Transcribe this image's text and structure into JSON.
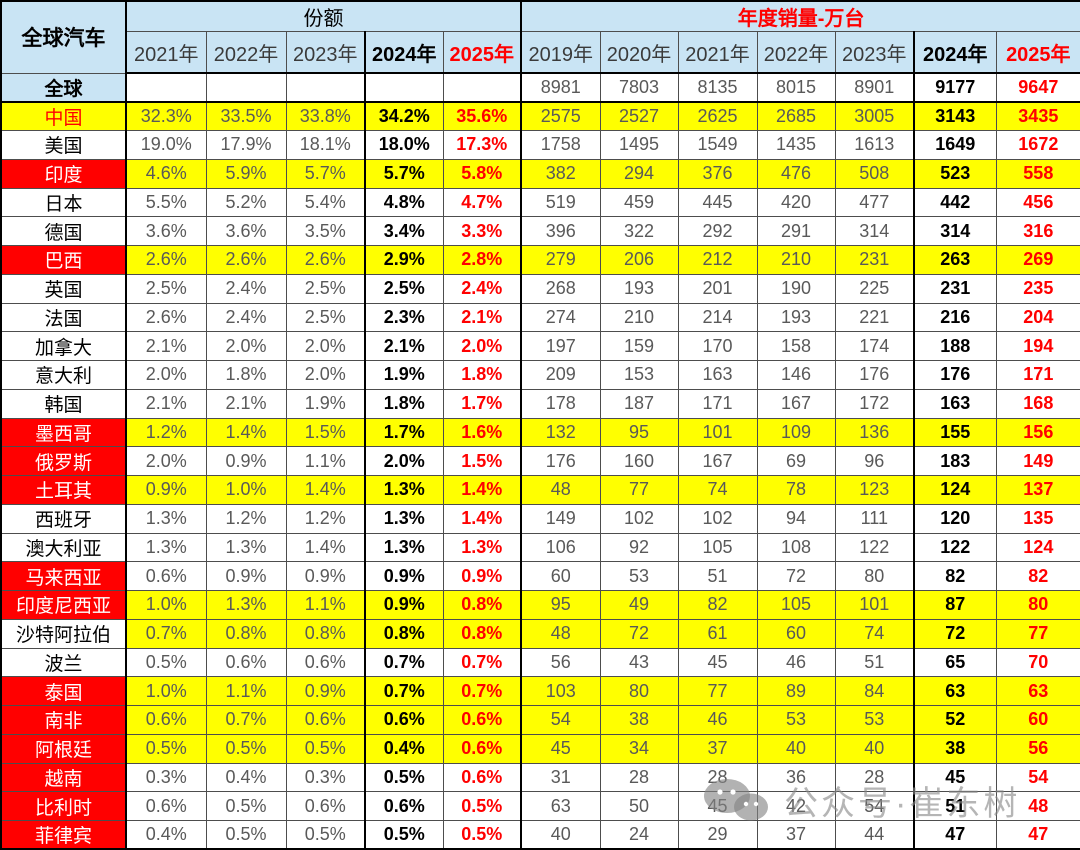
{
  "chart_data": {
    "type": "table",
    "corner_title": "全球汽车",
    "col_groups": [
      {
        "label": "份额"
      },
      {
        "label": "年度销量-万台"
      }
    ],
    "share_years": [
      "2021年",
      "2022年",
      "2023年",
      "2024年",
      "2025年"
    ],
    "sales_years": [
      "2019年",
      "2020年",
      "2021年",
      "2022年",
      "2023年",
      "2024年",
      "2025年"
    ],
    "rows": [
      {
        "label": "全球",
        "row_style": "global",
        "share": [
          "",
          "",
          "",
          "",
          ""
        ],
        "sales": [
          "8981",
          "7803",
          "8135",
          "8015",
          "8901",
          "9177",
          "9647"
        ]
      },
      {
        "label": "中国",
        "row_style": "china",
        "share": [
          "32.3%",
          "33.5%",
          "33.8%",
          "34.2%",
          "35.6%"
        ],
        "sales": [
          "2575",
          "2527",
          "2625",
          "2685",
          "3005",
          "3143",
          "3435"
        ]
      },
      {
        "label": "美国",
        "row_style": "plain",
        "share": [
          "19.0%",
          "17.9%",
          "18.1%",
          "18.0%",
          "17.3%"
        ],
        "sales": [
          "1758",
          "1495",
          "1549",
          "1435",
          "1613",
          "1649",
          "1672"
        ]
      },
      {
        "label": "印度",
        "row_style": "red_yellow",
        "share": [
          "4.6%",
          "5.9%",
          "5.7%",
          "5.7%",
          "5.8%"
        ],
        "sales": [
          "382",
          "294",
          "376",
          "476",
          "508",
          "523",
          "558"
        ]
      },
      {
        "label": "日本",
        "row_style": "plain",
        "share": [
          "5.5%",
          "5.2%",
          "5.4%",
          "4.8%",
          "4.7%"
        ],
        "sales": [
          "519",
          "459",
          "445",
          "420",
          "477",
          "442",
          "456"
        ]
      },
      {
        "label": "德国",
        "row_style": "plain",
        "share": [
          "3.6%",
          "3.6%",
          "3.5%",
          "3.4%",
          "3.3%"
        ],
        "sales": [
          "396",
          "322",
          "292",
          "291",
          "314",
          "314",
          "316"
        ]
      },
      {
        "label": "巴西",
        "row_style": "red_yellow",
        "share": [
          "2.6%",
          "2.6%",
          "2.6%",
          "2.9%",
          "2.8%"
        ],
        "sales": [
          "279",
          "206",
          "212",
          "210",
          "231",
          "263",
          "269"
        ]
      },
      {
        "label": "英国",
        "row_style": "plain",
        "share": [
          "2.5%",
          "2.4%",
          "2.5%",
          "2.5%",
          "2.4%"
        ],
        "sales": [
          "268",
          "193",
          "201",
          "190",
          "225",
          "231",
          "235"
        ]
      },
      {
        "label": "法国",
        "row_style": "plain",
        "share": [
          "2.6%",
          "2.4%",
          "2.5%",
          "2.3%",
          "2.1%"
        ],
        "sales": [
          "274",
          "210",
          "214",
          "193",
          "221",
          "216",
          "204"
        ]
      },
      {
        "label": "加拿大",
        "row_style": "plain",
        "share": [
          "2.1%",
          "2.0%",
          "2.0%",
          "2.1%",
          "2.0%"
        ],
        "sales": [
          "197",
          "159",
          "170",
          "158",
          "174",
          "188",
          "194"
        ]
      },
      {
        "label": "意大利",
        "row_style": "plain",
        "share": [
          "2.0%",
          "1.8%",
          "2.0%",
          "1.9%",
          "1.8%"
        ],
        "sales": [
          "209",
          "153",
          "163",
          "146",
          "176",
          "176",
          "171"
        ]
      },
      {
        "label": "韩国",
        "row_style": "plain",
        "share": [
          "2.1%",
          "2.1%",
          "1.9%",
          "1.8%",
          "1.7%"
        ],
        "sales": [
          "178",
          "187",
          "171",
          "167",
          "172",
          "163",
          "168"
        ]
      },
      {
        "label": "墨西哥",
        "row_style": "red_yellow",
        "share": [
          "1.2%",
          "1.4%",
          "1.5%",
          "1.7%",
          "1.6%"
        ],
        "sales": [
          "132",
          "95",
          "101",
          "109",
          "136",
          "155",
          "156"
        ]
      },
      {
        "label": "俄罗斯",
        "row_style": "red_white",
        "share": [
          "2.0%",
          "0.9%",
          "1.1%",
          "2.0%",
          "1.5%"
        ],
        "sales": [
          "176",
          "160",
          "167",
          "69",
          "96",
          "183",
          "149"
        ]
      },
      {
        "label": "土耳其",
        "row_style": "red_yellow",
        "share": [
          "0.9%",
          "1.0%",
          "1.4%",
          "1.3%",
          "1.4%"
        ],
        "sales": [
          "48",
          "77",
          "74",
          "78",
          "123",
          "124",
          "137"
        ]
      },
      {
        "label": "西班牙",
        "row_style": "plain",
        "share": [
          "1.3%",
          "1.2%",
          "1.2%",
          "1.3%",
          "1.4%"
        ],
        "sales": [
          "149",
          "102",
          "102",
          "94",
          "111",
          "120",
          "135"
        ]
      },
      {
        "label": "澳大利亚",
        "row_style": "plain",
        "share": [
          "1.3%",
          "1.3%",
          "1.4%",
          "1.3%",
          "1.3%"
        ],
        "sales": [
          "106",
          "92",
          "105",
          "108",
          "122",
          "122",
          "124"
        ]
      },
      {
        "label": "马来西亚",
        "row_style": "red_white",
        "share": [
          "0.6%",
          "0.9%",
          "0.9%",
          "0.9%",
          "0.9%"
        ],
        "sales": [
          "60",
          "53",
          "51",
          "72",
          "80",
          "82",
          "82"
        ]
      },
      {
        "label": "印度尼西亚",
        "row_style": "red_yellow",
        "share": [
          "1.0%",
          "1.3%",
          "1.1%",
          "0.9%",
          "0.8%"
        ],
        "sales": [
          "95",
          "49",
          "82",
          "105",
          "101",
          "87",
          "80"
        ]
      },
      {
        "label": "沙特阿拉伯",
        "row_style": "white_yellow",
        "share": [
          "0.7%",
          "0.8%",
          "0.8%",
          "0.8%",
          "0.8%"
        ],
        "sales": [
          "48",
          "72",
          "61",
          "60",
          "74",
          "72",
          "77"
        ]
      },
      {
        "label": "波兰",
        "row_style": "plain",
        "share": [
          "0.5%",
          "0.6%",
          "0.6%",
          "0.7%",
          "0.7%"
        ],
        "sales": [
          "56",
          "43",
          "45",
          "46",
          "51",
          "65",
          "70"
        ]
      },
      {
        "label": "泰国",
        "row_style": "red_yellow",
        "share": [
          "1.0%",
          "1.1%",
          "0.9%",
          "0.7%",
          "0.7%"
        ],
        "sales": [
          "103",
          "80",
          "77",
          "89",
          "84",
          "63",
          "63"
        ]
      },
      {
        "label": "南非",
        "row_style": "red_yellow",
        "share": [
          "0.6%",
          "0.7%",
          "0.6%",
          "0.6%",
          "0.6%"
        ],
        "sales": [
          "54",
          "38",
          "46",
          "53",
          "53",
          "52",
          "60"
        ]
      },
      {
        "label": "阿根廷",
        "row_style": "red_yellow",
        "share": [
          "0.5%",
          "0.5%",
          "0.5%",
          "0.4%",
          "0.6%"
        ],
        "sales": [
          "45",
          "34",
          "37",
          "40",
          "40",
          "38",
          "56"
        ]
      },
      {
        "label": "越南",
        "row_style": "red_white",
        "share": [
          "0.3%",
          "0.4%",
          "0.3%",
          "0.5%",
          "0.6%"
        ],
        "sales": [
          "31",
          "28",
          "28",
          "36",
          "28",
          "45",
          "54"
        ]
      },
      {
        "label": "比利时",
        "row_style": "red_white",
        "share": [
          "0.6%",
          "0.5%",
          "0.6%",
          "0.6%",
          "0.5%"
        ],
        "sales": [
          "63",
          "50",
          "45",
          "42",
          "54",
          "51",
          "48"
        ]
      },
      {
        "label": "菲律宾",
        "row_style": "red_white",
        "share": [
          "0.4%",
          "0.5%",
          "0.5%",
          "0.5%",
          "0.5%"
        ],
        "sales": [
          "40",
          "24",
          "29",
          "37",
          "44",
          "47",
          "47"
        ]
      }
    ]
  },
  "watermark": {
    "text": "公众号·崔东树",
    "icon": "wechat-icon"
  },
  "colors": {
    "header_blue": "#C9E4F4",
    "highlight_yellow": "#FFFF00",
    "highlight_red": "#FF0000",
    "accent_red_text": "#FF0000",
    "normal_text_gray": "#595959"
  }
}
